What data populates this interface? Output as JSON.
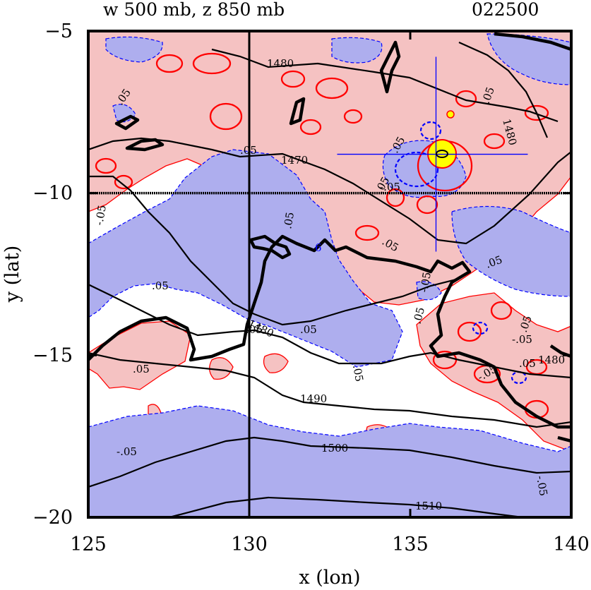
{
  "chart_data": {
    "type": "contour",
    "title_left": "w 500 mb, z 850 mb",
    "title_right": "022500",
    "xlabel": "x (lon)",
    "ylabel": "y (lat)",
    "xlim": [
      125,
      140
    ],
    "ylim": [
      -20,
      -5
    ],
    "xticks": [
      125,
      130,
      135,
      140
    ],
    "yticks": [
      -5,
      -10,
      -15,
      -20
    ],
    "x_tick_labels": [
      "125",
      "130",
      "135",
      "140"
    ],
    "y_tick_labels": [
      "−5",
      "−10",
      "−15",
      "−20"
    ],
    "reference_lines": {
      "lon": 130,
      "lat": -10
    },
    "storm_center": {
      "lon": 135.8,
      "lat": -8.8
    },
    "z850_contour_levels": [
      1470,
      1480,
      1490,
      1500,
      1510
    ],
    "z850_labels": [
      "1470",
      "1480",
      "1480",
      "1490",
      "1500",
      "1510",
      "1480",
      "1480"
    ],
    "w500_contour_levels": [
      -0.05,
      0.05
    ],
    "w500_labels": [
      ".05",
      ".05",
      "-.05",
      ".05",
      ".05",
      ".05",
      ".05",
      ".05",
      ".05",
      ".05",
      "-.05",
      ".05",
      ".05",
      "-.05",
      ".05",
      "-.05",
      ".05",
      ".05",
      ".05",
      "-.05",
      "-.05",
      "-.05",
      ".05"
    ],
    "symbols": [
      "6"
    ],
    "colors": {
      "upward": "#f5c2c2",
      "downward": "#aeaeee",
      "positive_contour": "#ff0000",
      "negative_contour": "#0000ff",
      "core": "#ffff00"
    }
  }
}
